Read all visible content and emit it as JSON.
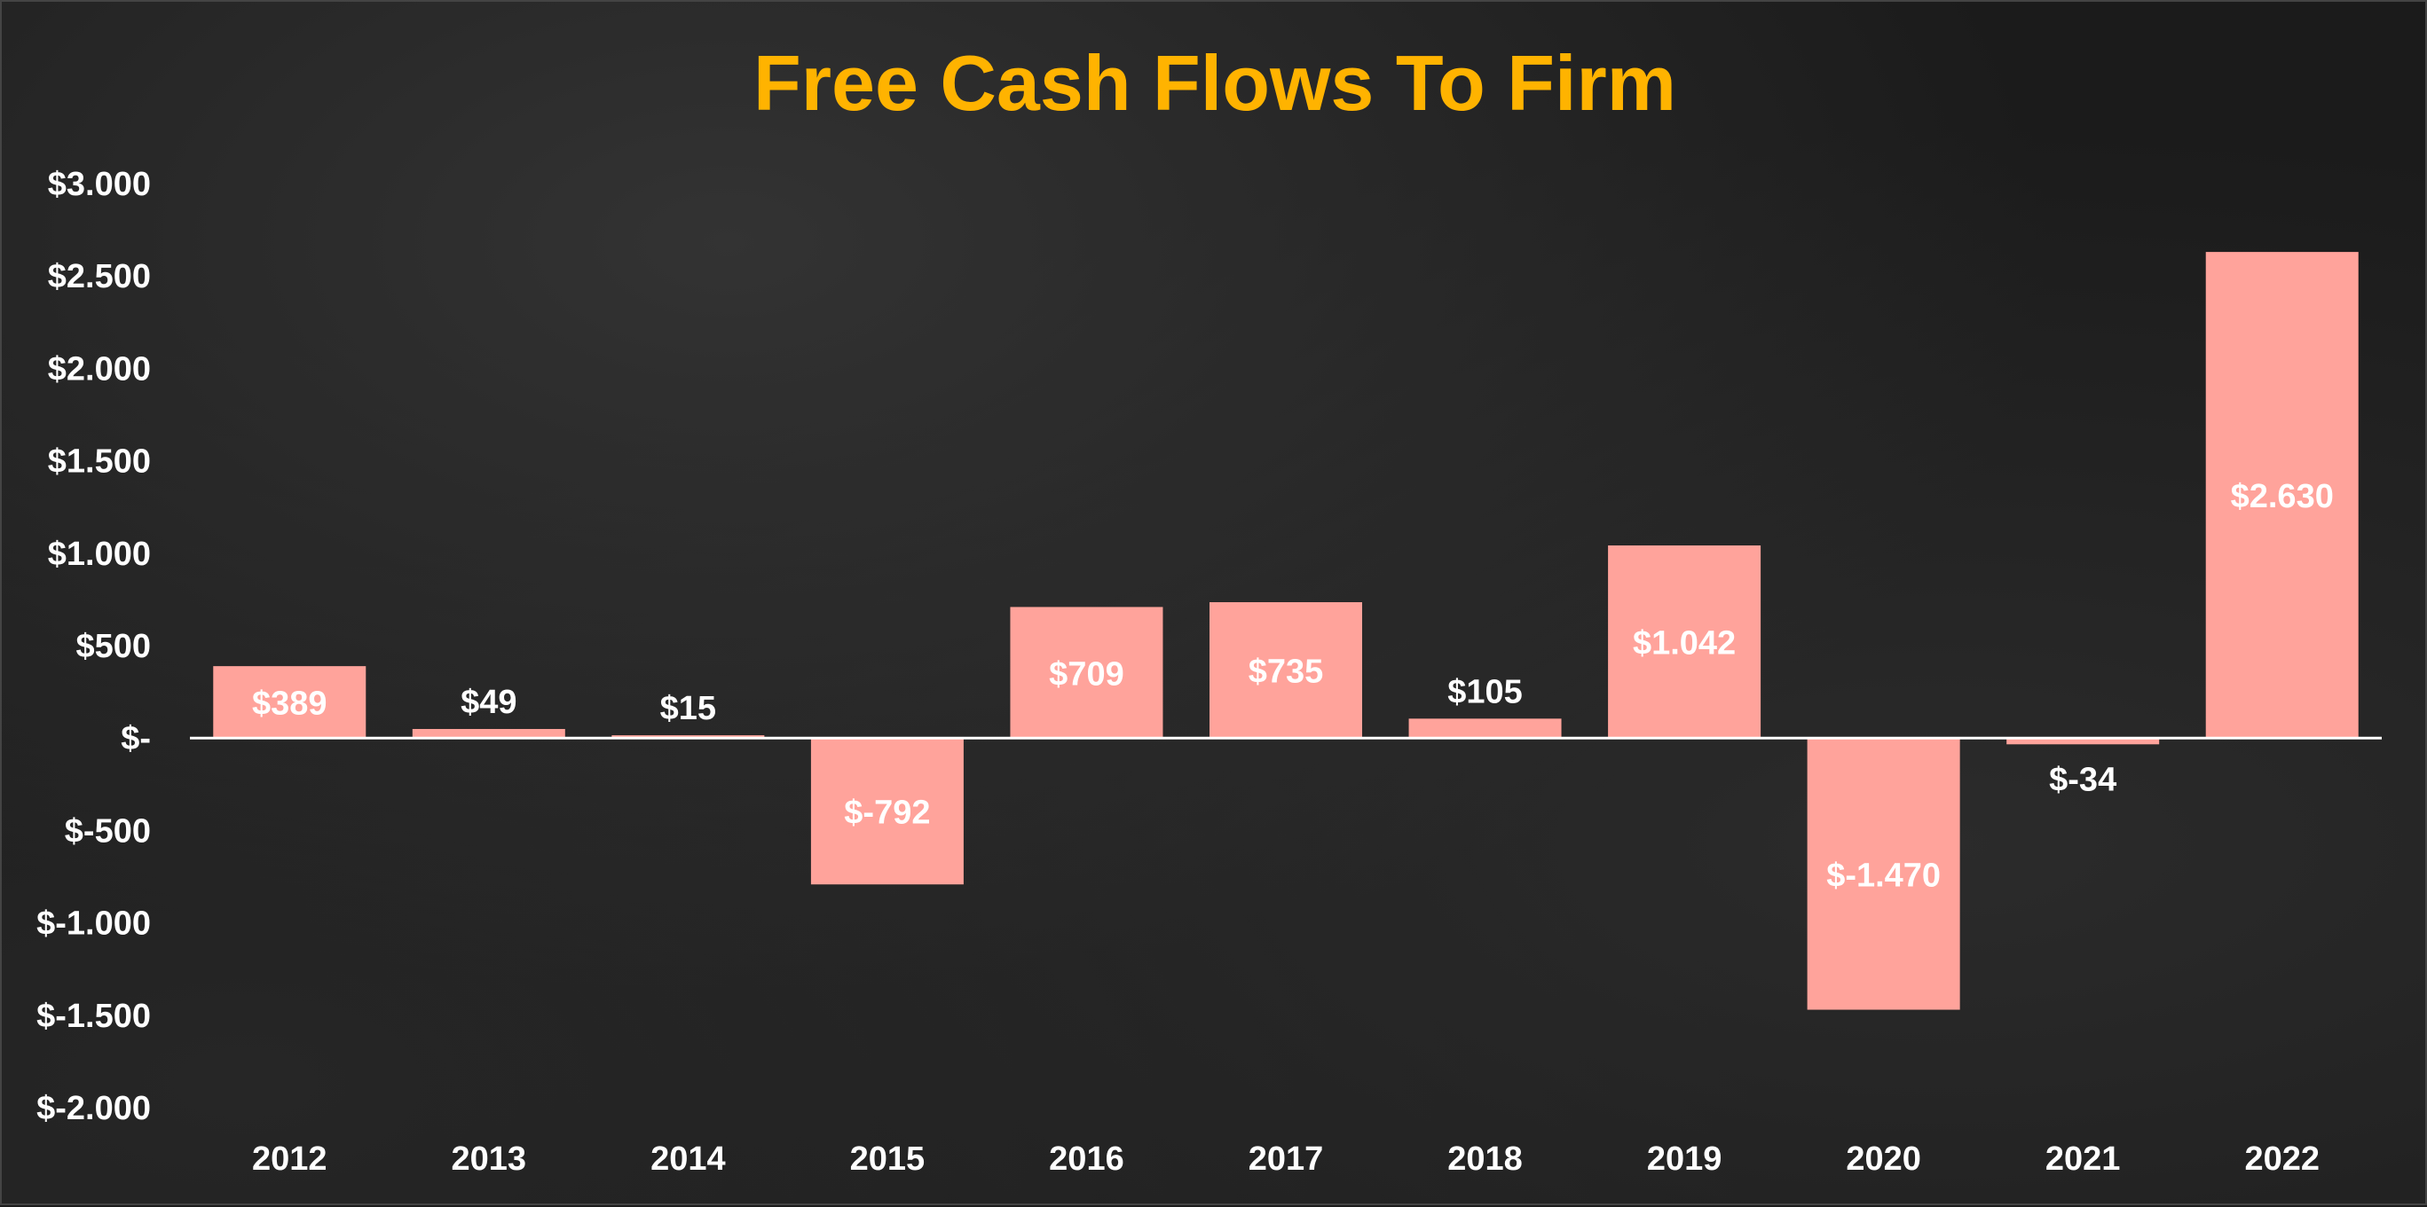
{
  "chart_data": {
    "type": "bar",
    "title": "Free Cash Flows To Firm",
    "xlabel": "",
    "ylabel": "",
    "categories": [
      "2012",
      "2013",
      "2014",
      "2015",
      "2016",
      "2017",
      "2018",
      "2019",
      "2020",
      "2021",
      "2022"
    ],
    "values": [
      389,
      49,
      15,
      -792,
      709,
      735,
      105,
      1042,
      -1470,
      -34,
      2630
    ],
    "data_labels": [
      "$389",
      "$49",
      "$15",
      "$-792",
      "$709",
      "$735",
      "$105",
      "$1.042",
      "$-1.470",
      "$-34",
      "$2.630"
    ],
    "ylim": [
      -2000,
      3000
    ],
    "yticks": [
      3000,
      2500,
      2000,
      1500,
      1000,
      500,
      0,
      -500,
      -1000,
      -1500,
      -2000
    ],
    "ytick_labels": [
      "$3.000",
      "$2.500",
      "$2.000",
      "$1.500",
      "$1.000",
      "$500",
      "$-",
      "$-500",
      "$-1.000",
      "$-1.500",
      "$-2.000"
    ],
    "grid": false,
    "legend": "none",
    "colors": {
      "bar": "#ffa39b",
      "title": "#ffb300",
      "text": "#ffffff",
      "zero_line": "#ffffff",
      "background": "#1c1c1c"
    }
  }
}
